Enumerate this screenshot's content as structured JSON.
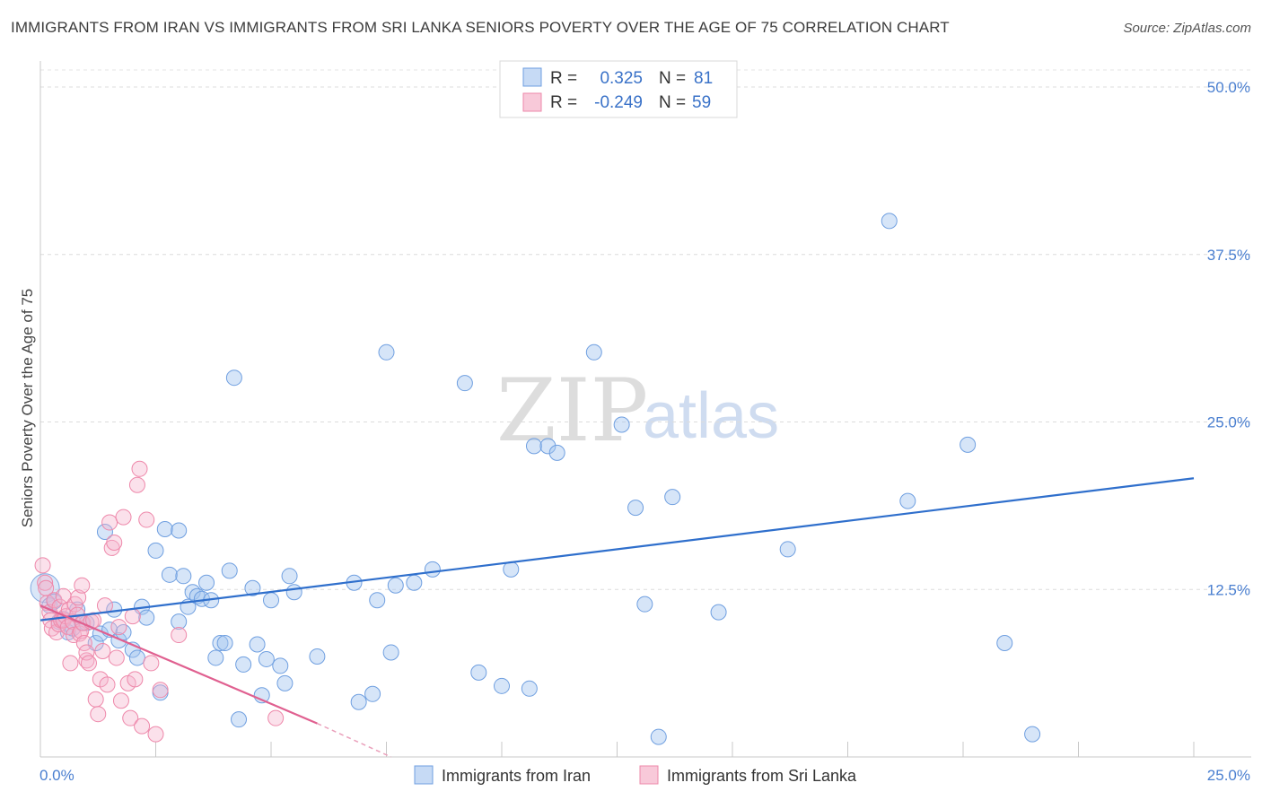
{
  "title": "IMMIGRANTS FROM IRAN VS IMMIGRANTS FROM SRI LANKA SENIORS POVERTY OVER THE AGE OF 75 CORRELATION CHART",
  "source": "Source: ZipAtlas.com",
  "watermark": {
    "zip": "ZIP",
    "atlas": "atlas"
  },
  "colors": {
    "iran": "#6f9fe0",
    "iran_line": "#2f6fcc",
    "srilanka": "#ee88aa",
    "srilanka_line": "#e06090",
    "tick": "#4a7fd0"
  },
  "legend": {
    "rows": [
      {
        "r_label": "R =",
        "r_value": "0.325",
        "n_label": "N =",
        "n_value": "81"
      },
      {
        "r_label": "R =",
        "r_value": "-0.249",
        "n_label": "N =",
        "n_value": "59"
      }
    ]
  },
  "chart_data": {
    "type": "scatter",
    "title": "IMMIGRANTS FROM IRAN VS IMMIGRANTS FROM SRI LANKA SENIORS POVERTY OVER THE AGE OF 75 CORRELATION CHART",
    "xlabel": "",
    "ylabel": "Seniors Poverty Over the Age of 75",
    "xlim": [
      0,
      25
    ],
    "ylim": [
      0,
      50
    ],
    "x_tick_labels": [
      "0.0%",
      "25.0%"
    ],
    "y_tick_labels": [
      "12.5%",
      "25.0%",
      "37.5%",
      "50.0%"
    ],
    "y_ticks": [
      12.5,
      25.0,
      37.5,
      50.0
    ],
    "grid": "horizontal dashed",
    "legend_position": "top-center",
    "series": [
      {
        "name": "Immigrants from Iran",
        "color": "#6f9fe0",
        "r": 0.325,
        "n": 81,
        "trend": {
          "x": [
            0,
            25
          ],
          "y": [
            10.2,
            20.8
          ]
        },
        "points": [
          [
            0.1,
            12.6
          ],
          [
            0.2,
            11.3
          ],
          [
            0.3,
            11.6
          ],
          [
            0.4,
            10.1
          ],
          [
            0.5,
            10.3
          ],
          [
            0.6,
            9.3
          ],
          [
            0.7,
            9.6
          ],
          [
            0.8,
            11.0
          ],
          [
            0.9,
            10.0
          ],
          [
            1.0,
            10.0
          ],
          [
            1.2,
            8.5
          ],
          [
            1.3,
            9.2
          ],
          [
            1.4,
            16.8
          ],
          [
            1.5,
            9.5
          ],
          [
            1.6,
            11.0
          ],
          [
            1.7,
            8.7
          ],
          [
            1.8,
            9.3
          ],
          [
            2.0,
            8.0
          ],
          [
            2.1,
            7.4
          ],
          [
            2.2,
            11.2
          ],
          [
            2.3,
            10.4
          ],
          [
            2.5,
            15.4
          ],
          [
            2.6,
            4.8
          ],
          [
            2.7,
            17.0
          ],
          [
            2.8,
            13.6
          ],
          [
            3.0,
            16.9
          ],
          [
            3.0,
            10.1
          ],
          [
            3.1,
            13.5
          ],
          [
            3.2,
            11.2
          ],
          [
            3.3,
            12.3
          ],
          [
            3.4,
            12.0
          ],
          [
            3.5,
            11.8
          ],
          [
            3.6,
            13.0
          ],
          [
            3.7,
            11.7
          ],
          [
            3.8,
            7.4
          ],
          [
            3.9,
            8.5
          ],
          [
            4.0,
            8.5
          ],
          [
            4.1,
            13.9
          ],
          [
            4.2,
            28.3
          ],
          [
            4.3,
            2.8
          ],
          [
            4.4,
            6.9
          ],
          [
            4.6,
            12.6
          ],
          [
            4.7,
            8.4
          ],
          [
            4.8,
            4.6
          ],
          [
            4.9,
            7.3
          ],
          [
            5.0,
            11.7
          ],
          [
            5.2,
            6.8
          ],
          [
            5.3,
            5.5
          ],
          [
            5.4,
            13.5
          ],
          [
            5.5,
            12.3
          ],
          [
            6.0,
            7.5
          ],
          [
            6.8,
            13.0
          ],
          [
            6.9,
            4.1
          ],
          [
            7.2,
            4.7
          ],
          [
            7.3,
            11.7
          ],
          [
            7.5,
            30.2
          ],
          [
            7.6,
            7.8
          ],
          [
            7.7,
            12.8
          ],
          [
            8.1,
            13.0
          ],
          [
            8.5,
            14.0
          ],
          [
            9.2,
            27.9
          ],
          [
            9.5,
            6.3
          ],
          [
            10.0,
            5.3
          ],
          [
            10.2,
            14.0
          ],
          [
            10.6,
            5.1
          ],
          [
            10.7,
            23.2
          ],
          [
            11.0,
            23.2
          ],
          [
            11.2,
            22.7
          ],
          [
            12.0,
            30.2
          ],
          [
            12.6,
            24.8
          ],
          [
            12.9,
            18.6
          ],
          [
            13.1,
            11.4
          ],
          [
            13.4,
            1.5
          ],
          [
            13.7,
            19.4
          ],
          [
            14.7,
            10.8
          ],
          [
            16.2,
            15.5
          ],
          [
            18.4,
            40.0
          ],
          [
            18.8,
            19.1
          ],
          [
            20.1,
            23.3
          ],
          [
            20.9,
            8.5
          ],
          [
            21.5,
            1.7
          ]
        ]
      },
      {
        "name": "Immigrants from Sri Lanka",
        "color": "#ee88aa",
        "r": -0.249,
        "n": 59,
        "trend": {
          "x": [
            0,
            6.0
          ],
          "y": [
            11.3,
            2.5
          ]
        },
        "trend_dashed": {
          "x": [
            6.0,
            7.6
          ],
          "y": [
            2.5,
            0
          ]
        },
        "points": [
          [
            0.05,
            14.3
          ],
          [
            0.1,
            13.0
          ],
          [
            0.12,
            12.6
          ],
          [
            0.15,
            11.5
          ],
          [
            0.2,
            10.8
          ],
          [
            0.22,
            10.2
          ],
          [
            0.25,
            9.6
          ],
          [
            0.3,
            11.7
          ],
          [
            0.35,
            9.3
          ],
          [
            0.4,
            9.9
          ],
          [
            0.42,
            11.2
          ],
          [
            0.45,
            10.2
          ],
          [
            0.5,
            12.0
          ],
          [
            0.5,
            10.2
          ],
          [
            0.55,
            10.5
          ],
          [
            0.6,
            9.7
          ],
          [
            0.62,
            11.0
          ],
          [
            0.65,
            7.0
          ],
          [
            0.7,
            10.1
          ],
          [
            0.72,
            9.1
          ],
          [
            0.75,
            11.4
          ],
          [
            0.8,
            10.6
          ],
          [
            0.82,
            11.9
          ],
          [
            0.85,
            9.2
          ],
          [
            0.88,
            9.4
          ],
          [
            0.9,
            12.8
          ],
          [
            0.92,
            10.0
          ],
          [
            0.95,
            8.5
          ],
          [
            1.0,
            7.2
          ],
          [
            1.0,
            7.8
          ],
          [
            1.05,
            7.0
          ],
          [
            1.1,
            10.1
          ],
          [
            1.15,
            10.2
          ],
          [
            1.2,
            4.3
          ],
          [
            1.25,
            3.2
          ],
          [
            1.3,
            5.8
          ],
          [
            1.35,
            7.9
          ],
          [
            1.4,
            11.3
          ],
          [
            1.45,
            5.4
          ],
          [
            1.5,
            17.5
          ],
          [
            1.55,
            15.6
          ],
          [
            1.6,
            16.0
          ],
          [
            1.65,
            7.4
          ],
          [
            1.7,
            9.7
          ],
          [
            1.75,
            4.2
          ],
          [
            1.8,
            17.9
          ],
          [
            1.9,
            5.5
          ],
          [
            1.95,
            2.9
          ],
          [
            2.0,
            10.5
          ],
          [
            2.05,
            5.8
          ],
          [
            2.1,
            20.3
          ],
          [
            2.15,
            21.5
          ],
          [
            2.2,
            2.3
          ],
          [
            2.3,
            17.7
          ],
          [
            2.4,
            7.0
          ],
          [
            2.5,
            1.7
          ],
          [
            2.6,
            5.0
          ],
          [
            3.0,
            9.1
          ],
          [
            5.1,
            2.9
          ]
        ]
      }
    ]
  },
  "bottom_legend": [
    {
      "label": "Immigrants from Iran"
    },
    {
      "label": "Immigrants from Sri Lanka"
    }
  ]
}
